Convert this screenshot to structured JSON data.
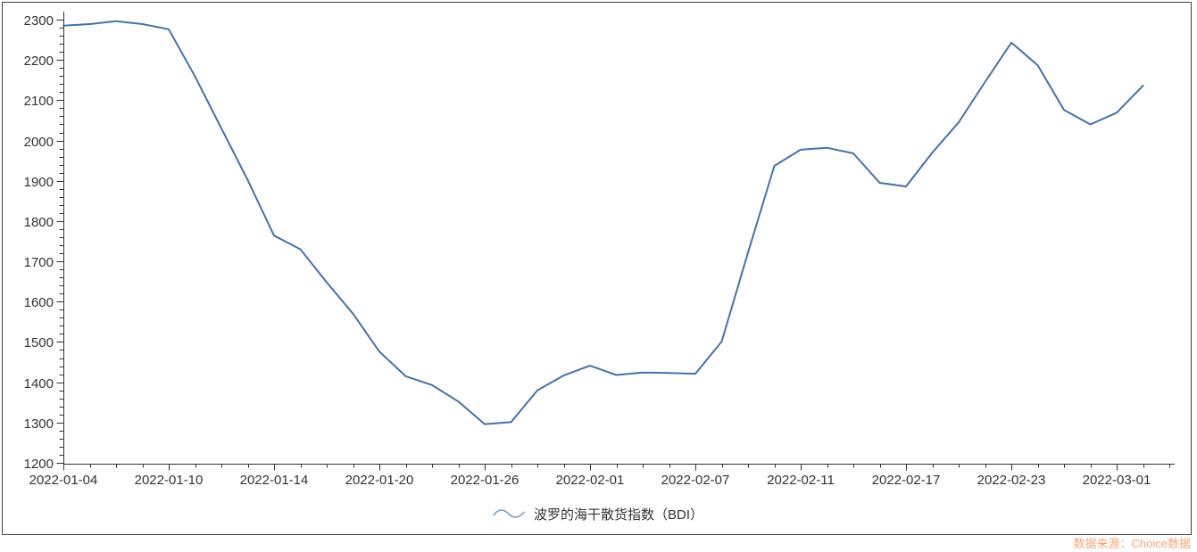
{
  "chart": {
    "legend": {
      "label": "波罗的海干散货指数（BDI）"
    },
    "source_note": "数据来源：Choice数据",
    "colors": {
      "line": "#4572a7",
      "legend_wave": "#7b9fc7",
      "axis": "#333333",
      "tick_label": "#333333",
      "frame": "#404040",
      "source": "#f5a57a",
      "background": "#ffffff"
    }
  },
  "chart_data": {
    "type": "line",
    "title": "",
    "xlabel": "",
    "ylabel": "",
    "grid": false,
    "legend_position": "bottom",
    "ylim": [
      1200,
      2300
    ],
    "y_major_step": 100,
    "y_minor_step": 20,
    "x_label_every": 4,
    "x_tick_labels": [
      "2022-01-04",
      "2022-01-10",
      "2022-01-14",
      "2022-01-20",
      "2022-01-26",
      "2022-02-01",
      "2022-02-07",
      "2022-02-11",
      "2022-02-17",
      "2022-02-23",
      "2022-03-01"
    ],
    "series": [
      {
        "name": "波罗的海干散货指数（BDI）",
        "x": [
          "2022-01-04",
          "2022-01-05",
          "2022-01-06",
          "2022-01-07",
          "2022-01-10",
          "2022-01-11",
          "2022-01-12",
          "2022-01-13",
          "2022-01-14",
          "2022-01-17",
          "2022-01-18",
          "2022-01-19",
          "2022-01-20",
          "2022-01-21",
          "2022-01-24",
          "2022-01-25",
          "2022-01-26",
          "2022-01-27",
          "2022-01-28",
          "2022-01-31",
          "2022-02-01",
          "2022-02-02",
          "2022-02-03",
          "2022-02-04",
          "2022-02-07",
          "2022-02-08",
          "2022-02-09",
          "2022-02-10",
          "2022-02-11",
          "2022-02-14",
          "2022-02-15",
          "2022-02-16",
          "2022-02-17",
          "2022-02-18",
          "2022-02-21",
          "2022-02-22",
          "2022-02-23",
          "2022-02-24",
          "2022-02-25",
          "2022-02-28",
          "2022-03-01",
          "2022-03-02"
        ],
        "values": [
          2285,
          2289,
          2296,
          2289,
          2276,
          2159,
          2030,
          1902,
          1764,
          1730,
          1648,
          1570,
          1476,
          1415,
          1393,
          1352,
          1296,
          1301,
          1380,
          1417,
          1441,
          1418,
          1424,
          1423,
          1421,
          1501,
          1722,
          1937,
          1977,
          1982,
          1968,
          1895,
          1886,
          1970,
          2045,
          2145,
          2243,
          2187,
          2076,
          2040,
          2069,
          2136
        ]
      }
    ]
  }
}
